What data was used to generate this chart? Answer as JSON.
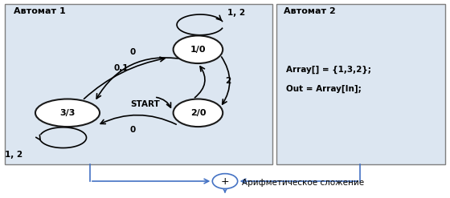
{
  "bg_color": "#dce6f1",
  "bg_color2": "#ffffff",
  "box1_title": "Автомат 1",
  "box2_title": "Автомат 2",
  "box2_text1": "Array[] = {1,3,2};",
  "box2_text2": "Out = Array[In];",
  "plus_label": "+",
  "bottom_label": "Арифметическое сложение",
  "start_label": "START",
  "connector_color": "#4472c4",
  "arrow_color": "#1a1a1a",
  "state_ec": "#1a1a1a",
  "box_ec": "#7f7f7f",
  "s1x": 0.44,
  "s1y": 0.75,
  "s2x": 0.44,
  "s2y": 0.43,
  "s3x": 0.15,
  "s3y": 0.43,
  "ew": 0.11,
  "eh": 0.14
}
